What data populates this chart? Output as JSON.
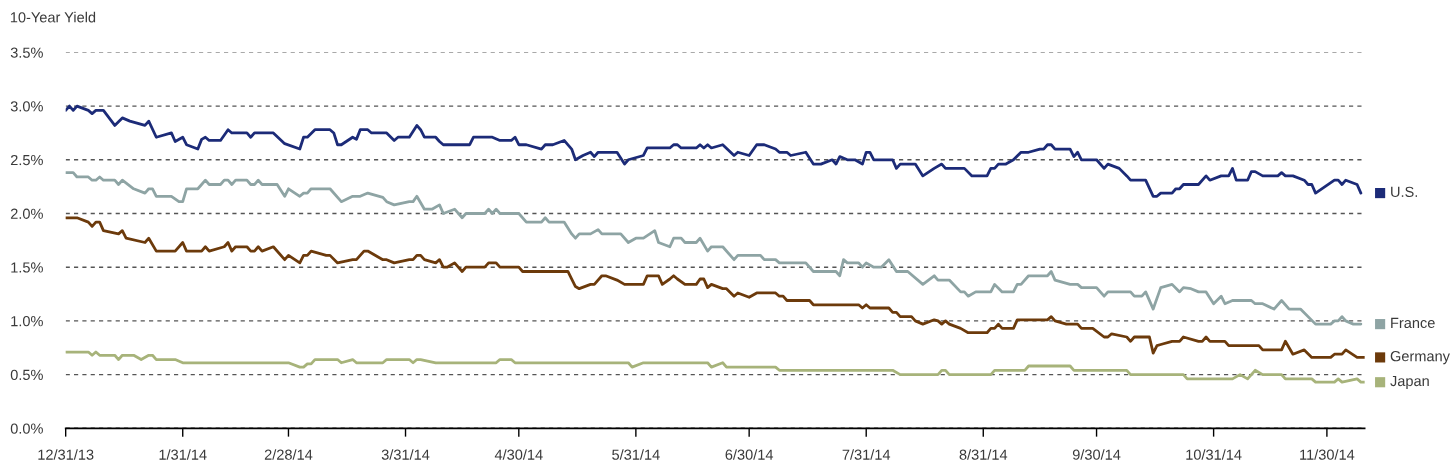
{
  "chart_data": {
    "type": "line",
    "ylabel": "10-Year Yield",
    "grid": "y",
    "legend": "right",
    "line_style": "solid",
    "xlim": [
      "2013-12-31",
      "2014-12-10"
    ],
    "xticks": [
      {
        "value": "2013-12-31",
        "label": "12/31/13"
      },
      {
        "value": "2014-01-31",
        "label": "1/31/14"
      },
      {
        "value": "2014-02-28",
        "label": "2/28/14"
      },
      {
        "value": "2014-03-31",
        "label": "3/31/14"
      },
      {
        "value": "2014-04-30",
        "label": "4/30/14"
      },
      {
        "value": "2014-05-31",
        "label": "5/31/14"
      },
      {
        "value": "2014-06-30",
        "label": "6/30/14"
      },
      {
        "value": "2014-07-31",
        "label": "7/31/14"
      },
      {
        "value": "2014-08-31",
        "label": "8/31/14"
      },
      {
        "value": "2014-09-30",
        "label": "9/30/14"
      },
      {
        "value": "2014-10-31",
        "label": "10/31/14"
      },
      {
        "value": "2014-11-30",
        "label": "11/30/14"
      }
    ],
    "ylim": [
      0,
      3.5
    ],
    "yticks": [
      {
        "value": 0,
        "label": "0.0%"
      },
      {
        "value": 0.5,
        "label": "0.5%"
      },
      {
        "value": 1,
        "label": "1.0%"
      },
      {
        "value": 1.5,
        "label": "1.5%"
      },
      {
        "value": 2,
        "label": "2.0%"
      },
      {
        "value": 2.5,
        "label": "2.5%"
      },
      {
        "value": 3,
        "label": "3.0%"
      },
      {
        "value": 3.5,
        "label": "3.5%"
      }
    ],
    "series": [
      {
        "name": "U.S.",
        "color": "#1c2b78",
        "x": [
          "2013-12-31",
          "2014-01-01",
          "2014-01-02",
          "2014-01-03",
          "2014-01-06",
          "2014-01-07",
          "2014-01-08",
          "2014-01-10",
          "2014-01-13",
          "2014-01-15",
          "2014-01-17",
          "2014-01-21",
          "2014-01-22",
          "2014-01-24",
          "2014-01-28",
          "2014-01-29",
          "2014-01-31",
          "2014-02-01",
          "2014-02-04",
          "2014-02-05",
          "2014-02-06",
          "2014-02-07",
          "2014-02-10",
          "2014-02-12",
          "2014-02-13",
          "2014-02-17",
          "2014-02-18",
          "2014-02-19",
          "2014-02-24",
          "2014-02-27",
          "2014-03-03",
          "2014-03-04",
          "2014-03-05",
          "2014-03-07",
          "2014-03-11",
          "2014-03-12",
          "2014-03-13",
          "2014-03-14",
          "2014-03-17",
          "2014-03-18",
          "2014-03-19",
          "2014-03-21",
          "2014-03-22",
          "2014-03-26",
          "2014-03-28",
          "2014-03-29",
          "2014-04-01",
          "2014-04-03",
          "2014-04-04",
          "2014-04-05",
          "2014-04-08",
          "2014-04-09",
          "2014-04-10",
          "2014-04-17",
          "2014-04-18",
          "2014-04-23",
          "2014-04-25",
          "2014-04-28",
          "2014-04-29",
          "2014-04-30",
          "2014-05-02",
          "2014-05-06",
          "2014-05-07",
          "2014-05-09",
          "2014-05-12",
          "2014-05-14",
          "2014-05-15",
          "2014-05-17",
          "2014-05-19",
          "2014-05-20",
          "2014-05-21",
          "2014-05-26",
          "2014-05-28",
          "2014-05-29",
          "2014-06-02",
          "2014-06-03",
          "2014-06-09",
          "2014-06-10",
          "2014-06-11",
          "2014-06-12",
          "2014-06-16",
          "2014-06-17",
          "2014-06-18",
          "2014-06-19",
          "2014-06-20",
          "2014-06-23",
          "2014-06-26",
          "2014-06-27",
          "2014-06-30",
          "2014-07-02",
          "2014-07-04",
          "2014-07-07",
          "2014-07-08",
          "2014-07-10",
          "2014-07-11",
          "2014-07-15",
          "2014-07-17",
          "2014-07-19",
          "2014-07-22",
          "2014-07-23",
          "2014-07-24",
          "2014-07-26",
          "2014-07-28",
          "2014-07-30",
          "2014-07-31",
          "2014-08-01",
          "2014-08-02",
          "2014-08-07",
          "2014-08-08",
          "2014-08-09",
          "2014-08-13",
          "2014-08-15",
          "2014-08-18",
          "2014-08-20",
          "2014-08-21",
          "2014-08-26",
          "2014-08-28",
          "2014-09-01",
          "2014-09-02",
          "2014-09-03",
          "2014-09-04",
          "2014-09-06",
          "2014-09-08",
          "2014-09-10",
          "2014-09-12",
          "2014-09-15",
          "2014-09-16",
          "2014-09-17",
          "2014-09-18",
          "2014-09-19",
          "2014-09-23",
          "2014-09-24",
          "2014-09-25",
          "2014-09-26",
          "2014-09-30",
          "2014-10-02",
          "2014-10-03",
          "2014-10-06",
          "2014-10-08",
          "2014-10-09",
          "2014-10-13",
          "2014-10-15",
          "2014-10-16",
          "2014-10-17",
          "2014-10-20",
          "2014-10-21",
          "2014-10-22",
          "2014-10-23",
          "2014-10-27",
          "2014-10-29",
          "2014-10-30",
          "2014-11-02",
          "2014-11-04",
          "2014-11-05",
          "2014-11-06",
          "2014-11-09",
          "2014-11-10",
          "2014-11-11",
          "2014-11-13",
          "2014-11-17",
          "2014-11-18",
          "2014-11-19",
          "2014-11-21",
          "2014-11-24",
          "2014-11-25",
          "2014-11-26",
          "2014-11-27",
          "2014-12-02",
          "2014-12-03",
          "2014-12-04",
          "2014-12-05",
          "2014-12-08",
          "2014-12-09"
        ],
        "values": [
          2.96,
          3.0,
          2.96,
          3.0,
          2.96,
          2.93,
          2.96,
          2.96,
          2.82,
          2.89,
          2.86,
          2.82,
          2.86,
          2.71,
          2.75,
          2.67,
          2.71,
          2.64,
          2.6,
          2.69,
          2.71,
          2.68,
          2.68,
          2.78,
          2.75,
          2.75,
          2.71,
          2.75,
          2.75,
          2.65,
          2.6,
          2.71,
          2.71,
          2.78,
          2.78,
          2.75,
          2.64,
          2.64,
          2.71,
          2.69,
          2.78,
          2.78,
          2.75,
          2.75,
          2.68,
          2.71,
          2.71,
          2.82,
          2.78,
          2.71,
          2.71,
          2.67,
          2.64,
          2.64,
          2.71,
          2.71,
          2.68,
          2.68,
          2.71,
          2.64,
          2.64,
          2.6,
          2.64,
          2.64,
          2.68,
          2.6,
          2.5,
          2.54,
          2.57,
          2.53,
          2.57,
          2.57,
          2.46,
          2.5,
          2.54,
          2.61,
          2.61,
          2.64,
          2.64,
          2.61,
          2.61,
          2.64,
          2.61,
          2.64,
          2.61,
          2.64,
          2.54,
          2.57,
          2.54,
          2.64,
          2.64,
          2.6,
          2.57,
          2.57,
          2.54,
          2.57,
          2.46,
          2.46,
          2.5,
          2.46,
          2.53,
          2.5,
          2.5,
          2.46,
          2.57,
          2.57,
          2.5,
          2.5,
          2.42,
          2.46,
          2.46,
          2.35,
          2.42,
          2.46,
          2.42,
          2.42,
          2.35,
          2.35,
          2.42,
          2.42,
          2.46,
          2.46,
          2.5,
          2.57,
          2.57,
          2.6,
          2.6,
          2.64,
          2.64,
          2.6,
          2.6,
          2.53,
          2.57,
          2.5,
          2.5,
          2.42,
          2.46,
          2.42,
          2.35,
          2.31,
          2.31,
          2.16,
          2.16,
          2.19,
          2.19,
          2.23,
          2.23,
          2.27,
          2.27,
          2.35,
          2.31,
          2.35,
          2.35,
          2.42,
          2.31,
          2.31,
          2.39,
          2.39,
          2.35,
          2.35,
          2.38,
          2.35,
          2.35,
          2.31,
          2.27,
          2.27,
          2.19,
          2.31,
          2.31,
          2.27,
          2.31,
          2.27,
          2.19
        ]
      },
      {
        "name": "France",
        "color": "#8ea4a4",
        "x": [
          "2013-12-31",
          "2014-01-02",
          "2014-01-03",
          "2014-01-06",
          "2014-01-07",
          "2014-01-08",
          "2014-01-09",
          "2014-01-10",
          "2014-01-13",
          "2014-01-14",
          "2014-01-15",
          "2014-01-18",
          "2014-01-21",
          "2014-01-22",
          "2014-01-23",
          "2014-01-24",
          "2014-01-28",
          "2014-01-30",
          "2014-01-31",
          "2014-02-01",
          "2014-02-04",
          "2014-02-05",
          "2014-02-06",
          "2014-02-07",
          "2014-02-10",
          "2014-02-11",
          "2014-02-12",
          "2014-02-13",
          "2014-02-14",
          "2014-02-17",
          "2014-02-18",
          "2014-02-19",
          "2014-02-20",
          "2014-02-21",
          "2014-02-25",
          "2014-02-27",
          "2014-02-28",
          "2014-03-03",
          "2014-03-04",
          "2014-03-05",
          "2014-03-06",
          "2014-03-11",
          "2014-03-14",
          "2014-03-17",
          "2014-03-19",
          "2014-03-21",
          "2014-03-25",
          "2014-03-26",
          "2014-03-28",
          "2014-04-01",
          "2014-04-02",
          "2014-04-03",
          "2014-04-05",
          "2014-04-07",
          "2014-04-09",
          "2014-04-10",
          "2014-04-13",
          "2014-04-15",
          "2014-04-16",
          "2014-04-21",
          "2014-04-22",
          "2014-04-23",
          "2014-04-24",
          "2014-04-25",
          "2014-04-30",
          "2014-05-02",
          "2014-05-06",
          "2014-05-07",
          "2014-05-08",
          "2014-05-12",
          "2014-05-14",
          "2014-05-15",
          "2014-05-16",
          "2014-05-19",
          "2014-05-21",
          "2014-05-22",
          "2014-05-27",
          "2014-05-29",
          "2014-05-31",
          "2014-06-02",
          "2014-06-05",
          "2014-06-06",
          "2014-06-09",
          "2014-06-10",
          "2014-06-12",
          "2014-06-13",
          "2014-06-16",
          "2014-06-17",
          "2014-06-19",
          "2014-06-20",
          "2014-06-23",
          "2014-06-26",
          "2014-06-27",
          "2014-07-03",
          "2014-07-04",
          "2014-07-07",
          "2014-07-08",
          "2014-07-15",
          "2014-07-17",
          "2014-07-23",
          "2014-07-24",
          "2014-07-25",
          "2014-07-26",
          "2014-07-29",
          "2014-07-30",
          "2014-07-31",
          "2014-08-02",
          "2014-08-04",
          "2014-08-06",
          "2014-08-08",
          "2014-08-11",
          "2014-08-15",
          "2014-08-18",
          "2014-08-19",
          "2014-08-22",
          "2014-08-25",
          "2014-08-26",
          "2014-08-27",
          "2014-08-29",
          "2014-09-02",
          "2014-09-03",
          "2014-09-05",
          "2014-09-08",
          "2014-09-09",
          "2014-09-10",
          "2014-09-12",
          "2014-09-17",
          "2014-09-18",
          "2014-09-19",
          "2014-09-23",
          "2014-09-25",
          "2014-09-26",
          "2014-09-30",
          "2014-10-02",
          "2014-10-03",
          "2014-10-09",
          "2014-10-10",
          "2014-10-12",
          "2014-10-13",
          "2014-10-15",
          "2014-10-17",
          "2014-10-20",
          "2014-10-22",
          "2014-10-23",
          "2014-10-25",
          "2014-10-27",
          "2014-10-29",
          "2014-10-31",
          "2014-11-02",
          "2014-11-03",
          "2014-11-05",
          "2014-11-10",
          "2014-11-11",
          "2014-11-13",
          "2014-11-16",
          "2014-11-18",
          "2014-11-20",
          "2014-11-23",
          "2014-11-27",
          "2014-12-01",
          "2014-12-02",
          "2014-12-03",
          "2014-12-04",
          "2014-12-05",
          "2014-12-07",
          "2014-12-09"
        ],
        "values": [
          2.38,
          2.38,
          2.34,
          2.34,
          2.31,
          2.31,
          2.34,
          2.31,
          2.31,
          2.27,
          2.31,
          2.23,
          2.19,
          2.23,
          2.23,
          2.16,
          2.16,
          2.11,
          2.11,
          2.23,
          2.23,
          2.27,
          2.31,
          2.27,
          2.27,
          2.31,
          2.31,
          2.27,
          2.31,
          2.31,
          2.27,
          2.27,
          2.31,
          2.27,
          2.27,
          2.16,
          2.23,
          2.16,
          2.19,
          2.19,
          2.23,
          2.23,
          2.11,
          2.16,
          2.16,
          2.19,
          2.15,
          2.11,
          2.08,
          2.11,
          2.11,
          2.16,
          2.04,
          2.04,
          2.08,
          2.0,
          2.04,
          1.96,
          2.0,
          2.0,
          2.04,
          2.0,
          2.04,
          2.0,
          2.0,
          1.92,
          1.92,
          1.96,
          1.92,
          1.92,
          1.81,
          1.77,
          1.81,
          1.81,
          1.85,
          1.81,
          1.81,
          1.73,
          1.77,
          1.77,
          1.84,
          1.73,
          1.69,
          1.77,
          1.77,
          1.73,
          1.73,
          1.77,
          1.65,
          1.69,
          1.69,
          1.57,
          1.61,
          1.61,
          1.57,
          1.57,
          1.54,
          1.54,
          1.46,
          1.46,
          1.42,
          1.57,
          1.54,
          1.54,
          1.5,
          1.54,
          1.5,
          1.5,
          1.57,
          1.46,
          1.46,
          1.34,
          1.42,
          1.38,
          1.38,
          1.27,
          1.27,
          1.23,
          1.27,
          1.27,
          1.34,
          1.27,
          1.27,
          1.34,
          1.34,
          1.42,
          1.42,
          1.46,
          1.38,
          1.34,
          1.34,
          1.31,
          1.31,
          1.23,
          1.27,
          1.27,
          1.23,
          1.23,
          1.27,
          1.11,
          1.31,
          1.34,
          1.27,
          1.31,
          1.3,
          1.27,
          1.27,
          1.16,
          1.23,
          1.16,
          1.19,
          1.19,
          1.16,
          1.16,
          1.11,
          1.19,
          1.11,
          1.11,
          0.97,
          0.97,
          1.0,
          1.0,
          1.04,
          1.0,
          0.97,
          0.97
        ]
      },
      {
        "name": "Germany",
        "color": "#6c3a0b",
        "x": [
          "2013-12-31",
          "2014-01-03",
          "2014-01-06",
          "2014-01-07",
          "2014-01-08",
          "2014-01-09",
          "2014-01-10",
          "2014-01-14",
          "2014-01-15",
          "2014-01-16",
          "2014-01-21",
          "2014-01-22",
          "2014-01-24",
          "2014-01-29",
          "2014-01-31",
          "2014-02-01",
          "2014-02-05",
          "2014-02-06",
          "2014-02-07",
          "2014-02-11",
          "2014-02-12",
          "2014-02-13",
          "2014-02-14",
          "2014-02-17",
          "2014-02-18",
          "2014-02-19",
          "2014-02-20",
          "2014-02-21",
          "2014-02-24",
          "2014-02-27",
          "2014-02-28",
          "2014-03-03",
          "2014-03-04",
          "2014-03-05",
          "2014-03-06",
          "2014-03-10",
          "2014-03-11",
          "2014-03-13",
          "2014-03-17",
          "2014-03-18",
          "2014-03-20",
          "2014-03-21",
          "2014-03-25",
          "2014-03-26",
          "2014-03-28",
          "2014-04-01",
          "2014-04-02",
          "2014-04-03",
          "2014-04-04",
          "2014-04-05",
          "2014-04-08",
          "2014-04-09",
          "2014-04-10",
          "2014-04-11",
          "2014-04-13",
          "2014-04-15",
          "2014-04-16",
          "2014-04-21",
          "2014-04-22",
          "2014-04-24",
          "2014-04-25",
          "2014-04-30",
          "2014-05-01",
          "2014-05-13",
          "2014-05-15",
          "2014-05-16",
          "2014-05-19",
          "2014-05-20",
          "2014-05-22",
          "2014-05-23",
          "2014-05-26",
          "2014-05-28",
          "2014-06-02",
          "2014-06-03",
          "2014-06-06",
          "2014-06-07",
          "2014-06-09",
          "2014-06-10",
          "2014-06-11",
          "2014-06-13",
          "2014-06-16",
          "2014-06-17",
          "2014-06-18",
          "2014-06-19",
          "2014-06-20",
          "2014-06-23",
          "2014-06-24",
          "2014-06-26",
          "2014-06-27",
          "2014-06-30",
          "2014-07-02",
          "2014-07-07",
          "2014-07-08",
          "2014-07-09",
          "2014-07-10",
          "2014-07-16",
          "2014-07-17",
          "2014-07-29",
          "2014-07-30",
          "2014-07-31",
          "2014-08-01",
          "2014-08-06",
          "2014-08-07",
          "2014-08-08",
          "2014-08-09",
          "2014-08-12",
          "2014-08-13",
          "2014-08-15",
          "2014-08-18",
          "2014-08-19",
          "2014-08-20",
          "2014-08-21",
          "2014-08-22",
          "2014-08-25",
          "2014-08-27",
          "2014-09-01",
          "2014-09-02",
          "2014-09-03",
          "2014-09-04",
          "2014-09-05",
          "2014-09-08",
          "2014-09-09",
          "2014-09-17",
          "2014-09-18",
          "2014-09-19",
          "2014-09-22",
          "2014-09-25",
          "2014-09-26",
          "2014-09-29",
          "2014-10-02",
          "2014-10-03",
          "2014-10-04",
          "2014-10-08",
          "2014-10-09",
          "2014-10-10",
          "2014-10-14",
          "2014-10-15",
          "2014-10-16",
          "2014-10-17",
          "2014-10-20",
          "2014-10-22",
          "2014-10-23",
          "2014-10-27",
          "2014-10-28",
          "2014-10-29",
          "2014-10-30",
          "2014-11-03",
          "2014-11-04",
          "2014-11-12",
          "2014-11-13",
          "2014-11-18",
          "2014-11-19",
          "2014-11-21",
          "2014-11-24",
          "2014-11-26",
          "2014-12-01",
          "2014-12-02",
          "2014-12-04",
          "2014-12-05",
          "2014-12-08",
          "2014-12-10"
        ],
        "values": [
          1.96,
          1.96,
          1.92,
          1.88,
          1.92,
          1.92,
          1.84,
          1.81,
          1.84,
          1.77,
          1.73,
          1.77,
          1.65,
          1.65,
          1.73,
          1.65,
          1.65,
          1.69,
          1.65,
          1.69,
          1.73,
          1.65,
          1.69,
          1.69,
          1.65,
          1.65,
          1.69,
          1.65,
          1.69,
          1.57,
          1.61,
          1.54,
          1.61,
          1.61,
          1.65,
          1.61,
          1.61,
          1.54,
          1.57,
          1.57,
          1.65,
          1.65,
          1.57,
          1.57,
          1.54,
          1.57,
          1.57,
          1.61,
          1.61,
          1.57,
          1.54,
          1.57,
          1.5,
          1.5,
          1.54,
          1.46,
          1.5,
          1.5,
          1.54,
          1.54,
          1.5,
          1.5,
          1.46,
          1.46,
          1.32,
          1.3,
          1.34,
          1.34,
          1.42,
          1.42,
          1.38,
          1.34,
          1.34,
          1.42,
          1.42,
          1.34,
          1.39,
          1.42,
          1.39,
          1.34,
          1.34,
          1.39,
          1.39,
          1.31,
          1.34,
          1.3,
          1.3,
          1.23,
          1.26,
          1.22,
          1.26,
          1.26,
          1.23,
          1.23,
          1.19,
          1.19,
          1.15,
          1.15,
          1.12,
          1.15,
          1.12,
          1.12,
          1.08,
          1.08,
          1.04,
          1.04,
          1.0,
          0.97,
          1.01,
          1.0,
          0.97,
          1.0,
          0.97,
          0.93,
          0.89,
          0.89,
          0.93,
          0.93,
          0.97,
          0.93,
          0.93,
          1.01,
          1.01,
          1.04,
          1.0,
          0.97,
          0.97,
          0.93,
          0.93,
          0.85,
          0.85,
          0.88,
          0.85,
          0.81,
          0.85,
          0.85,
          0.7,
          0.77,
          0.78,
          0.81,
          0.81,
          0.85,
          0.81,
          0.81,
          0.85,
          0.81,
          0.81,
          0.77,
          0.77,
          0.73,
          0.73,
          0.81,
          0.69,
          0.73,
          0.66,
          0.66,
          0.69,
          0.69,
          0.73,
          0.66,
          0.66
        ]
      },
      {
        "name": "Japan",
        "color": "#a7b37a",
        "x": [
          "2013-12-31",
          "2014-01-06",
          "2014-01-07",
          "2014-01-08",
          "2014-01-09",
          "2014-01-13",
          "2014-01-14",
          "2014-01-15",
          "2014-01-18",
          "2014-01-20",
          "2014-01-22",
          "2014-01-23",
          "2014-01-24",
          "2014-01-29",
          "2014-01-31",
          "2014-02-28",
          "2014-03-03",
          "2014-03-04",
          "2014-03-05",
          "2014-03-06",
          "2014-03-07",
          "2014-03-13",
          "2014-03-14",
          "2014-03-17",
          "2014-03-18",
          "2014-03-25",
          "2014-03-26",
          "2014-04-01",
          "2014-04-02",
          "2014-04-03",
          "2014-04-04",
          "2014-04-08",
          "2014-04-24",
          "2014-04-25",
          "2014-04-28",
          "2014-04-29",
          "2014-05-29",
          "2014-05-30",
          "2014-06-02",
          "2014-06-19",
          "2014-06-20",
          "2014-06-23",
          "2014-06-24",
          "2014-07-07",
          "2014-07-08",
          "2014-08-07",
          "2014-08-09",
          "2014-08-19",
          "2014-08-20",
          "2014-08-21",
          "2014-08-22",
          "2014-09-02",
          "2014-09-03",
          "2014-09-11",
          "2014-09-12",
          "2014-09-23",
          "2014-09-24",
          "2014-10-08",
          "2014-10-09",
          "2014-10-23",
          "2014-10-24",
          "2014-11-05",
          "2014-11-07",
          "2014-11-09",
          "2014-11-11",
          "2014-11-13",
          "2014-11-18",
          "2014-11-19",
          "2014-11-26",
          "2014-11-27",
          "2014-12-02",
          "2014-12-03",
          "2014-12-04",
          "2014-12-08",
          "2014-12-09",
          "2014-12-10"
        ],
        "values": [
          0.71,
          0.71,
          0.68,
          0.71,
          0.68,
          0.68,
          0.64,
          0.68,
          0.68,
          0.64,
          0.68,
          0.68,
          0.64,
          0.64,
          0.61,
          0.61,
          0.57,
          0.57,
          0.6,
          0.6,
          0.64,
          0.64,
          0.61,
          0.64,
          0.61,
          0.61,
          0.64,
          0.64,
          0.61,
          0.64,
          0.64,
          0.61,
          0.61,
          0.64,
          0.64,
          0.61,
          0.61,
          0.57,
          0.61,
          0.61,
          0.57,
          0.61,
          0.57,
          0.57,
          0.54,
          0.54,
          0.5,
          0.5,
          0.54,
          0.54,
          0.5,
          0.5,
          0.54,
          0.54,
          0.58,
          0.58,
          0.54,
          0.54,
          0.5,
          0.5,
          0.46,
          0.46,
          0.5,
          0.46,
          0.54,
          0.5,
          0.5,
          0.46,
          0.46,
          0.43,
          0.43,
          0.46,
          0.43,
          0.46,
          0.43,
          0.43
        ]
      }
    ]
  }
}
